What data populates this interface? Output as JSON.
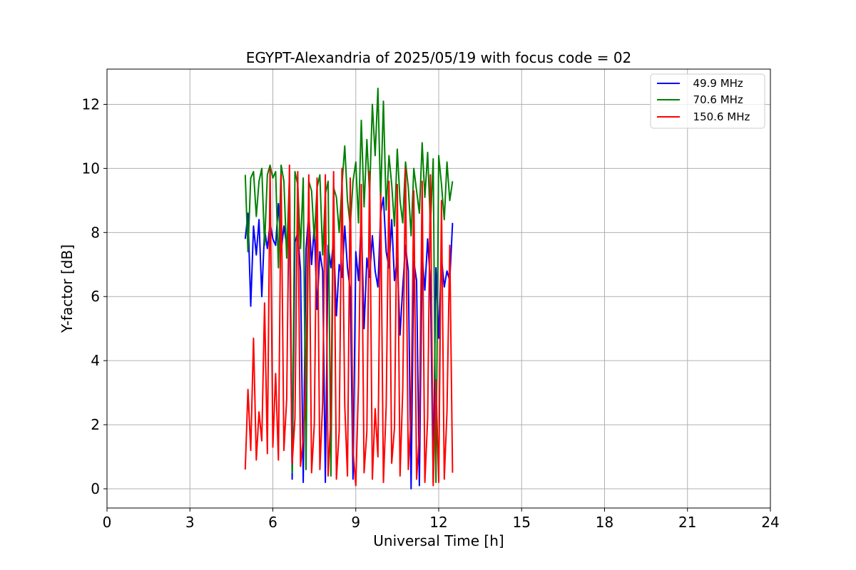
{
  "chart_data": {
    "type": "line",
    "title": "EGYPT-Alexandria of 2025/05/19 with focus code = 02",
    "xlabel": "Universal Time [h]",
    "ylabel": "Y-factor [dB]",
    "xlim": [
      0,
      24
    ],
    "ylim": [
      -0.6,
      13.1
    ],
    "xticks": [
      0,
      3,
      6,
      9,
      12,
      15,
      18,
      21,
      24
    ],
    "yticks": [
      0,
      2,
      4,
      6,
      8,
      10,
      12
    ],
    "grid": true,
    "legend_position": "top-right",
    "series": [
      {
        "name": "  49.9 MHz",
        "color": "#0000ff",
        "x": [
          5.0,
          5.1,
          5.2,
          5.3,
          5.4,
          5.5,
          5.6,
          5.7,
          5.8,
          5.9,
          6.0,
          6.1,
          6.2,
          6.3,
          6.4,
          6.5,
          6.6,
          6.7,
          6.8,
          6.9,
          7.0,
          7.1,
          7.2,
          7.3,
          7.4,
          7.5,
          7.6,
          7.7,
          7.8,
          7.9,
          8.0,
          8.1,
          8.2,
          8.3,
          8.4,
          8.5,
          8.6,
          8.7,
          8.8,
          8.9,
          9.0,
          9.1,
          9.2,
          9.3,
          9.4,
          9.5,
          9.6,
          9.7,
          9.8,
          9.9,
          10.0,
          10.1,
          10.2,
          10.3,
          10.4,
          10.5,
          10.6,
          10.7,
          10.8,
          10.9,
          11.0,
          11.1,
          11.2,
          11.3,
          11.4,
          11.5,
          11.6,
          11.7,
          11.8,
          11.9,
          12.0,
          12.1,
          12.2,
          12.3,
          12.4,
          12.5
        ],
        "y": [
          7.8,
          8.6,
          5.7,
          8.2,
          7.3,
          8.4,
          6.0,
          8.1,
          7.5,
          8.3,
          7.8,
          7.6,
          8.9,
          7.4,
          8.2,
          7.6,
          8.3,
          0.3,
          7.7,
          8.0,
          6.8,
          0.2,
          7.5,
          8.6,
          7.0,
          8.2,
          5.6,
          7.4,
          6.8,
          0.2,
          7.6,
          6.9,
          7.8,
          5.4,
          7.0,
          6.6,
          8.2,
          6.9,
          6.2,
          0.3,
          7.4,
          6.5,
          8.4,
          5.0,
          7.2,
          6.6,
          7.9,
          6.8,
          6.3,
          8.6,
          9.1,
          7.4,
          6.9,
          8.4,
          6.5,
          7.2,
          4.8,
          6.3,
          7.6,
          6.8,
          0.0,
          7.1,
          6.5,
          0.1,
          7.3,
          6.2,
          7.8,
          6.4,
          0.2,
          6.9,
          4.7,
          7.2,
          6.3,
          6.8,
          6.5,
          8.3
        ]
      },
      {
        "name": "  70.6 MHz",
        "color": "#008000",
        "x": [
          5.0,
          5.1,
          5.2,
          5.3,
          5.4,
          5.5,
          5.6,
          5.7,
          5.8,
          5.9,
          6.0,
          6.1,
          6.2,
          6.3,
          6.4,
          6.5,
          6.6,
          6.7,
          6.8,
          6.9,
          7.0,
          7.1,
          7.2,
          7.3,
          7.4,
          7.5,
          7.6,
          7.7,
          7.8,
          7.9,
          8.0,
          8.1,
          8.2,
          8.3,
          8.4,
          8.5,
          8.6,
          8.7,
          8.8,
          8.9,
          9.0,
          9.1,
          9.2,
          9.3,
          9.4,
          9.5,
          9.6,
          9.7,
          9.8,
          9.9,
          10.0,
          10.1,
          10.2,
          10.3,
          10.4,
          10.5,
          10.6,
          10.7,
          10.8,
          10.9,
          11.0,
          11.1,
          11.2,
          11.3,
          11.4,
          11.5,
          11.6,
          11.7,
          11.8,
          11.9,
          12.0,
          12.1,
          12.2,
          12.3,
          12.4,
          12.5
        ],
        "y": [
          9.8,
          7.4,
          9.7,
          9.9,
          8.5,
          9.6,
          10.0,
          7.6,
          9.8,
          10.1,
          9.7,
          9.9,
          6.9,
          10.1,
          9.6,
          7.2,
          9.8,
          0.5,
          9.9,
          9.5,
          7.5,
          9.7,
          0.6,
          9.6,
          9.3,
          7.8,
          9.4,
          9.8,
          7.3,
          9.2,
          9.6,
          0.4,
          9.4,
          9.1,
          8.0,
          9.5,
          10.7,
          9.0,
          8.2,
          9.6,
          10.2,
          8.3,
          11.5,
          8.8,
          10.9,
          9.2,
          12.0,
          10.4,
          12.5,
          9.0,
          12.1,
          8.7,
          10.4,
          9.5,
          8.2,
          10.6,
          9.0,
          8.3,
          10.2,
          9.4,
          7.9,
          10.0,
          9.3,
          8.6,
          10.8,
          9.1,
          10.5,
          8.2,
          10.3,
          0.2,
          10.4,
          9.5,
          8.4,
          10.2,
          9.0,
          9.6
        ]
      },
      {
        "name": "  150.6 MHz",
        "color": "#ff0000",
        "x": [
          5.0,
          5.1,
          5.2,
          5.3,
          5.4,
          5.5,
          5.6,
          5.7,
          5.8,
          5.9,
          6.0,
          6.1,
          6.2,
          6.3,
          6.4,
          6.5,
          6.6,
          6.7,
          6.8,
          6.9,
          7.0,
          7.1,
          7.2,
          7.3,
          7.4,
          7.5,
          7.6,
          7.7,
          7.8,
          7.9,
          8.0,
          8.1,
          8.2,
          8.3,
          8.4,
          8.5,
          8.6,
          8.7,
          8.8,
          8.9,
          9.0,
          9.1,
          9.2,
          9.3,
          9.4,
          9.5,
          9.6,
          9.7,
          9.8,
          9.9,
          10.0,
          10.1,
          10.2,
          10.3,
          10.4,
          10.5,
          10.6,
          10.7,
          10.8,
          10.9,
          11.0,
          11.1,
          11.2,
          11.3,
          11.4,
          11.5,
          11.6,
          11.7,
          11.8,
          11.9,
          12.0,
          12.1,
          12.2,
          12.3,
          12.4,
          12.5
        ],
        "y": [
          0.6,
          3.1,
          1.2,
          4.7,
          0.9,
          2.4,
          1.5,
          5.8,
          1.1,
          10.0,
          1.3,
          3.6,
          0.9,
          9.8,
          1.2,
          2.8,
          10.1,
          0.8,
          2.2,
          9.9,
          0.7,
          1.6,
          3.5,
          9.8,
          0.5,
          2.0,
          9.7,
          0.6,
          2.7,
          9.8,
          0.4,
          2.3,
          9.9,
          0.3,
          1.8,
          10.0,
          2.6,
          0.4,
          9.7,
          1.2,
          0.1,
          3.3,
          9.5,
          0.5,
          1.8,
          9.9,
          0.3,
          2.5,
          1.0,
          9.2,
          0.2,
          2.6,
          9.6,
          0.8,
          1.9,
          9.5,
          0.4,
          3.1,
          10.0,
          0.6,
          2.4,
          9.3,
          0.3,
          1.7,
          9.6,
          0.2,
          2.2,
          9.8,
          0.1,
          3.4,
          0.2,
          9.0,
          0.3,
          2.4,
          7.6,
          0.5
        ]
      }
    ]
  }
}
